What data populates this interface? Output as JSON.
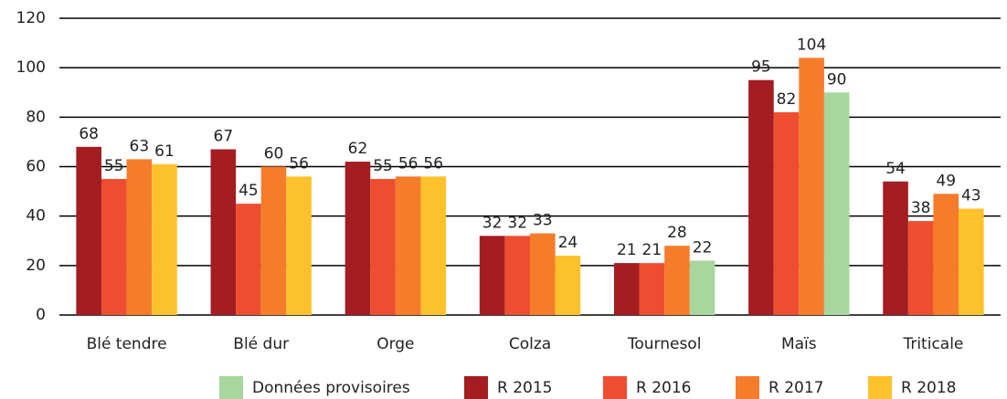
{
  "chart_data": {
    "type": "bar",
    "categories": [
      "Blé tendre",
      "Blé dur",
      "Orge",
      "Colza",
      "Tournesol",
      "Maïs",
      "Triticale"
    ],
    "series": [
      {
        "name": "R 2015",
        "color": "#a31d22",
        "values": [
          68,
          67,
          62,
          32,
          21,
          95,
          54
        ]
      },
      {
        "name": "R 2016",
        "color": "#ee4e2f",
        "values": [
          55,
          45,
          55,
          32,
          21,
          82,
          38
        ]
      },
      {
        "name": "R 2017",
        "color": "#f47c2b",
        "values": [
          63,
          60,
          56,
          33,
          28,
          104,
          49
        ]
      },
      {
        "name": "R 2018",
        "color": "#fdc12c",
        "values": [
          61,
          56,
          56,
          24,
          22,
          90,
          43
        ],
        "point_colors": [
          "#fdc12c",
          "#fdc12c",
          "#fdc12c",
          "#fdc12c",
          "#a7d69e",
          "#a7d69e",
          "#fdc12c"
        ]
      }
    ],
    "provisional_legend": {
      "name": "Données provisoires",
      "color": "#a7d69e"
    },
    "ylim": [
      0,
      120
    ],
    "yticks": [
      0,
      20,
      40,
      60,
      80,
      100,
      120
    ],
    "grid": true,
    "legend": "bottom"
  }
}
